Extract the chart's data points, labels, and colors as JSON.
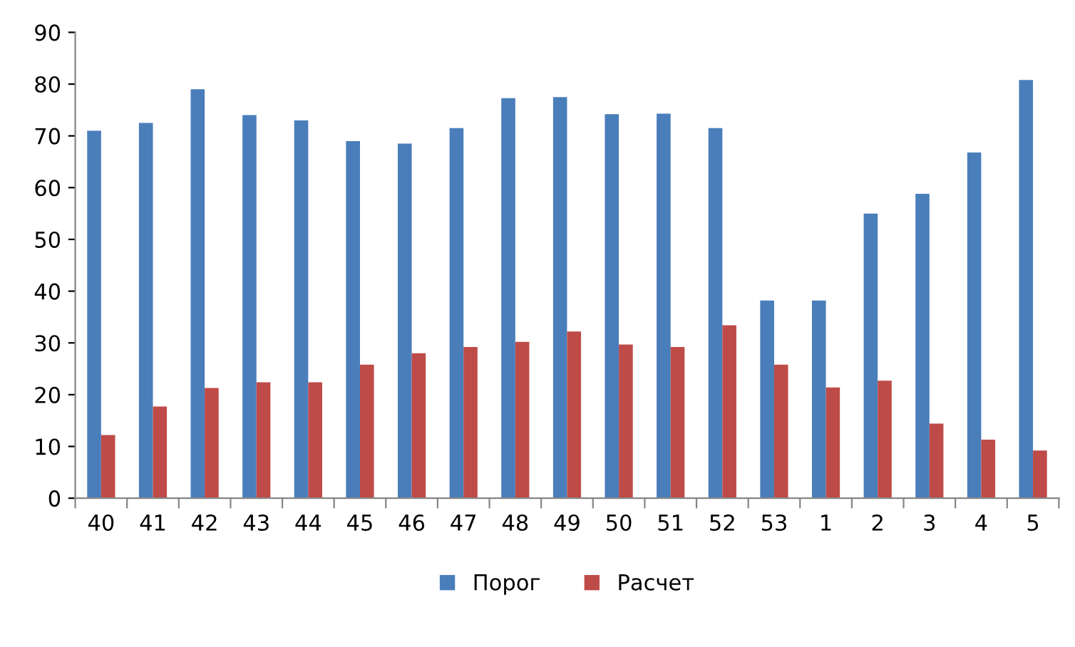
{
  "chart_data": {
    "type": "bar",
    "categories": [
      "40",
      "41",
      "42",
      "43",
      "44",
      "45",
      "46",
      "47",
      "48",
      "49",
      "50",
      "51",
      "52",
      "53",
      "1",
      "2",
      "3",
      "4",
      "5"
    ],
    "series": [
      {
        "name": "Порог",
        "color": "#4a7ebb",
        "values": [
          71,
          72.5,
          79,
          74,
          73,
          69,
          68.5,
          71.5,
          77.3,
          77.5,
          74.2,
          74.3,
          71.5,
          38.2,
          38.2,
          55,
          58.8,
          66.8,
          80.8
        ]
      },
      {
        "name": "Расчет",
        "color": "#be4b48",
        "values": [
          12.2,
          17.7,
          21.3,
          22.4,
          22.4,
          25.8,
          28,
          29.2,
          30.2,
          32.2,
          29.7,
          29.2,
          33.4,
          25.8,
          21.4,
          22.7,
          14.4,
          11.3,
          9.2
        ]
      }
    ],
    "ylim": [
      0,
      90
    ],
    "yticks": [
      0,
      10,
      20,
      30,
      40,
      50,
      60,
      70,
      80,
      90
    ],
    "grid": false,
    "legend": "bottom"
  }
}
